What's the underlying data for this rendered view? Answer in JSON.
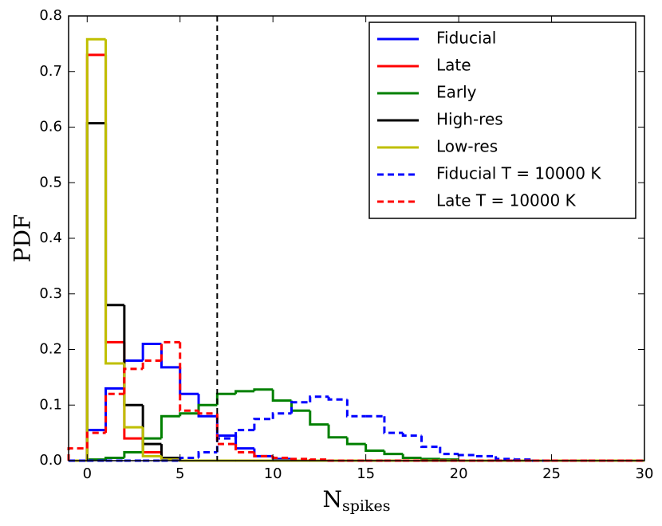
{
  "chart_data": {
    "type": "step-histogram",
    "xlabel": "N",
    "xlabel_sub": "spikes",
    "ylabel": "PDF",
    "bins": [
      -1,
      0,
      1,
      2,
      3,
      4,
      5,
      6,
      7,
      8,
      9,
      10,
      11,
      12,
      13,
      14,
      15,
      16,
      17,
      18,
      19,
      20,
      21,
      22,
      23,
      24,
      25,
      26,
      27,
      28,
      29,
      30
    ],
    "series": [
      {
        "name": "Fiducial",
        "color": "#0000ff",
        "dashed": false,
        "values": [
          0,
          0.055,
          0.13,
          0.18,
          0.21,
          0.168,
          0.12,
          0.08,
          0.045,
          0.022,
          0.008,
          0.003,
          0,
          0,
          0,
          0,
          0,
          0,
          0,
          0,
          0,
          0,
          0,
          0,
          0,
          0,
          0,
          0,
          0,
          0,
          0
        ]
      },
      {
        "name": "Late",
        "color": "#ff0000",
        "dashed": false,
        "values": [
          0,
          0.73,
          0.213,
          0.04,
          0.015,
          0.002,
          0,
          0,
          0,
          0,
          0,
          0,
          0,
          0,
          0,
          0,
          0,
          0,
          0,
          0,
          0,
          0,
          0,
          0,
          0,
          0,
          0,
          0,
          0,
          0,
          0
        ]
      },
      {
        "name": "Early",
        "color": "#008000",
        "dashed": false,
        "values": [
          0,
          0.002,
          0.005,
          0.015,
          0.04,
          0.08,
          0.085,
          0.1,
          0.12,
          0.125,
          0.128,
          0.108,
          0.09,
          0.065,
          0.042,
          0.03,
          0.018,
          0.012,
          0.005,
          0.003,
          0.002,
          0,
          0,
          0,
          0,
          0,
          0,
          0,
          0,
          0,
          0
        ]
      },
      {
        "name": "High-res",
        "color": "#000000",
        "dashed": false,
        "values": [
          0,
          0.607,
          0.28,
          0.1,
          0.03,
          0.005,
          0,
          0,
          0,
          0,
          0,
          0,
          0,
          0,
          0,
          0,
          0,
          0,
          0,
          0,
          0,
          0,
          0,
          0,
          0,
          0,
          0,
          0,
          0,
          0,
          0
        ]
      },
      {
        "name": "Low-res",
        "color": "#bfbf00",
        "dashed": false,
        "values": [
          0,
          0.758,
          0.175,
          0.06,
          0.008,
          0.002,
          0,
          0,
          0,
          0,
          0,
          0,
          0,
          0,
          0,
          0,
          0,
          0,
          0,
          0,
          0,
          0,
          0,
          0,
          0,
          0,
          0,
          0,
          0,
          0,
          0
        ]
      },
      {
        "name": "Fiducial T = 10000 K",
        "color": "#0000ff",
        "dashed": true,
        "values": [
          0,
          0,
          0,
          0,
          0,
          0,
          0.005,
          0.015,
          0.04,
          0.055,
          0.075,
          0.085,
          0.105,
          0.115,
          0.11,
          0.08,
          0.08,
          0.05,
          0.045,
          0.025,
          0.012,
          0.01,
          0.008,
          0.003,
          0.002,
          0,
          0,
          0,
          0,
          0,
          0
        ]
      },
      {
        "name": "Late T = 10000 K",
        "color": "#ff0000",
        "dashed": true,
        "values": [
          0.022,
          0.05,
          0.12,
          0.165,
          0.18,
          0.213,
          0.09,
          0.085,
          0.03,
          0.015,
          0.008,
          0.005,
          0.003,
          0.002,
          0,
          0,
          0,
          0,
          0,
          0,
          0,
          0,
          0,
          0,
          0,
          0,
          0,
          0,
          0,
          0,
          0
        ]
      }
    ],
    "vline": 7,
    "xlim": [
      -1,
      30
    ],
    "ylim": [
      0,
      0.8
    ],
    "xticks": [
      0,
      5,
      10,
      15,
      20,
      25,
      30
    ],
    "yticks": [
      {
        "value": 0,
        "label": "0.0"
      },
      0.1,
      0.2,
      0.3,
      0.4,
      0.5,
      0.6,
      0.7,
      0.8
    ],
    "legend": "upper right"
  }
}
